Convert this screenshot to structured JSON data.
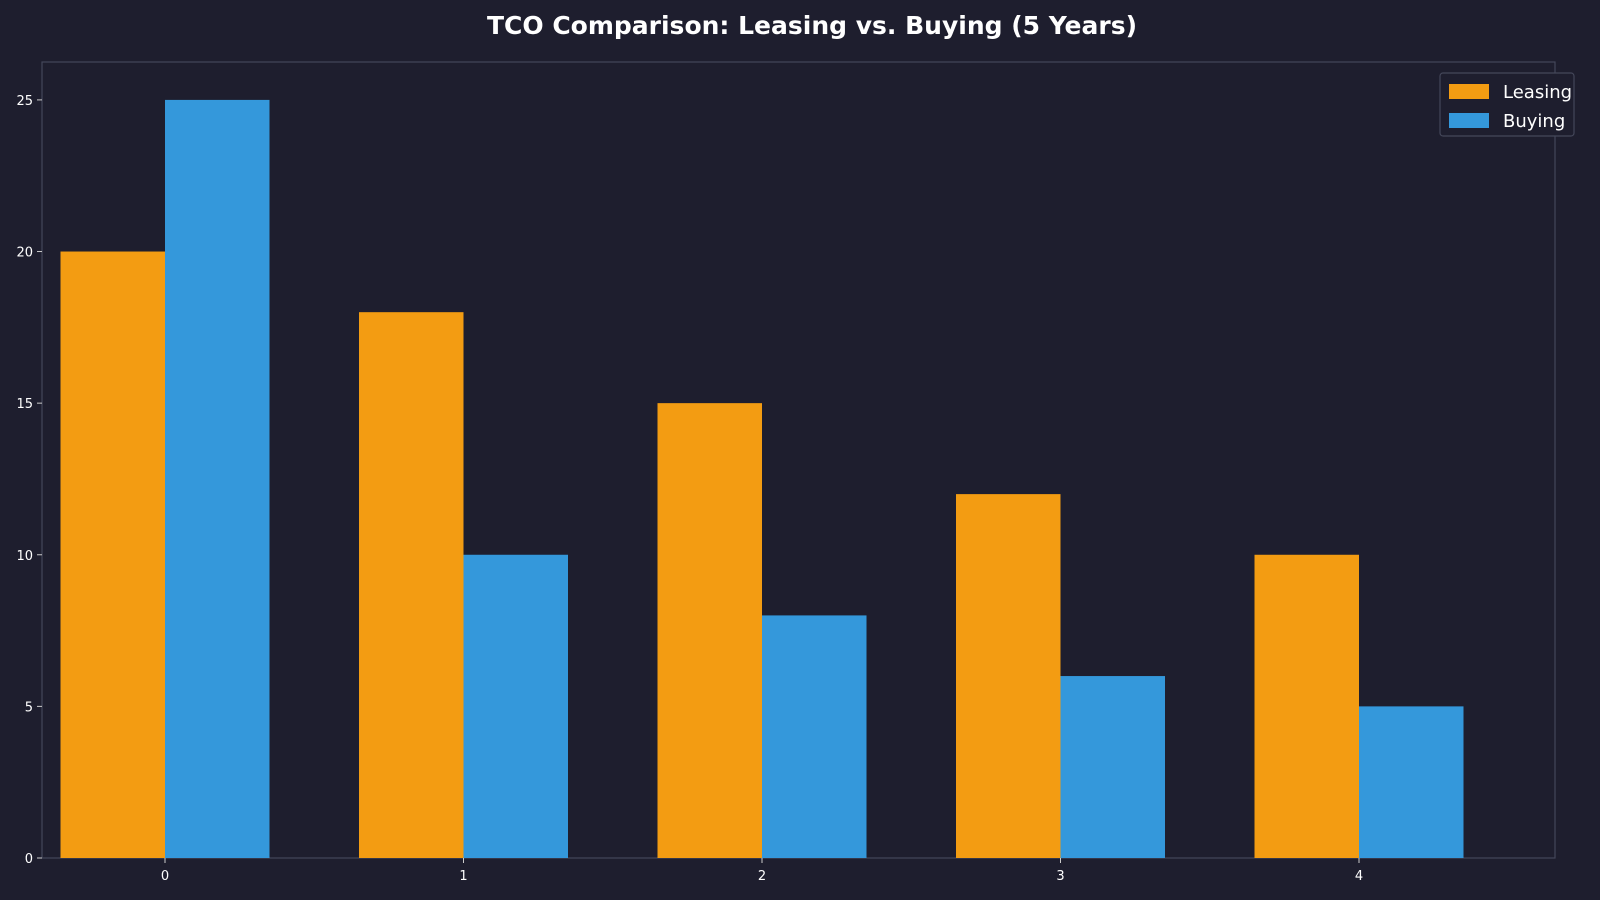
{
  "chart_data": {
    "type": "bar",
    "title": "TCO Comparison: Leasing vs. Buying (5 Years)",
    "xlabel": "",
    "ylabel": "",
    "categories": [
      "0",
      "1",
      "2",
      "3",
      "4"
    ],
    "series": [
      {
        "name": "Leasing",
        "color": "#f39c12",
        "values": [
          20,
          18,
          15,
          12,
          10
        ]
      },
      {
        "name": "Buying",
        "color": "#3498db",
        "values": [
          25,
          10,
          8,
          6,
          5
        ]
      }
    ],
    "ylim": [
      0,
      26.25
    ],
    "yticks": [
      0,
      5,
      10,
      15,
      20,
      25
    ],
    "grid": false,
    "legend_position": "top-right",
    "colors": {
      "background": "#1e1e2e",
      "axes_edge": "#44475a",
      "text": "#ffffff"
    }
  }
}
